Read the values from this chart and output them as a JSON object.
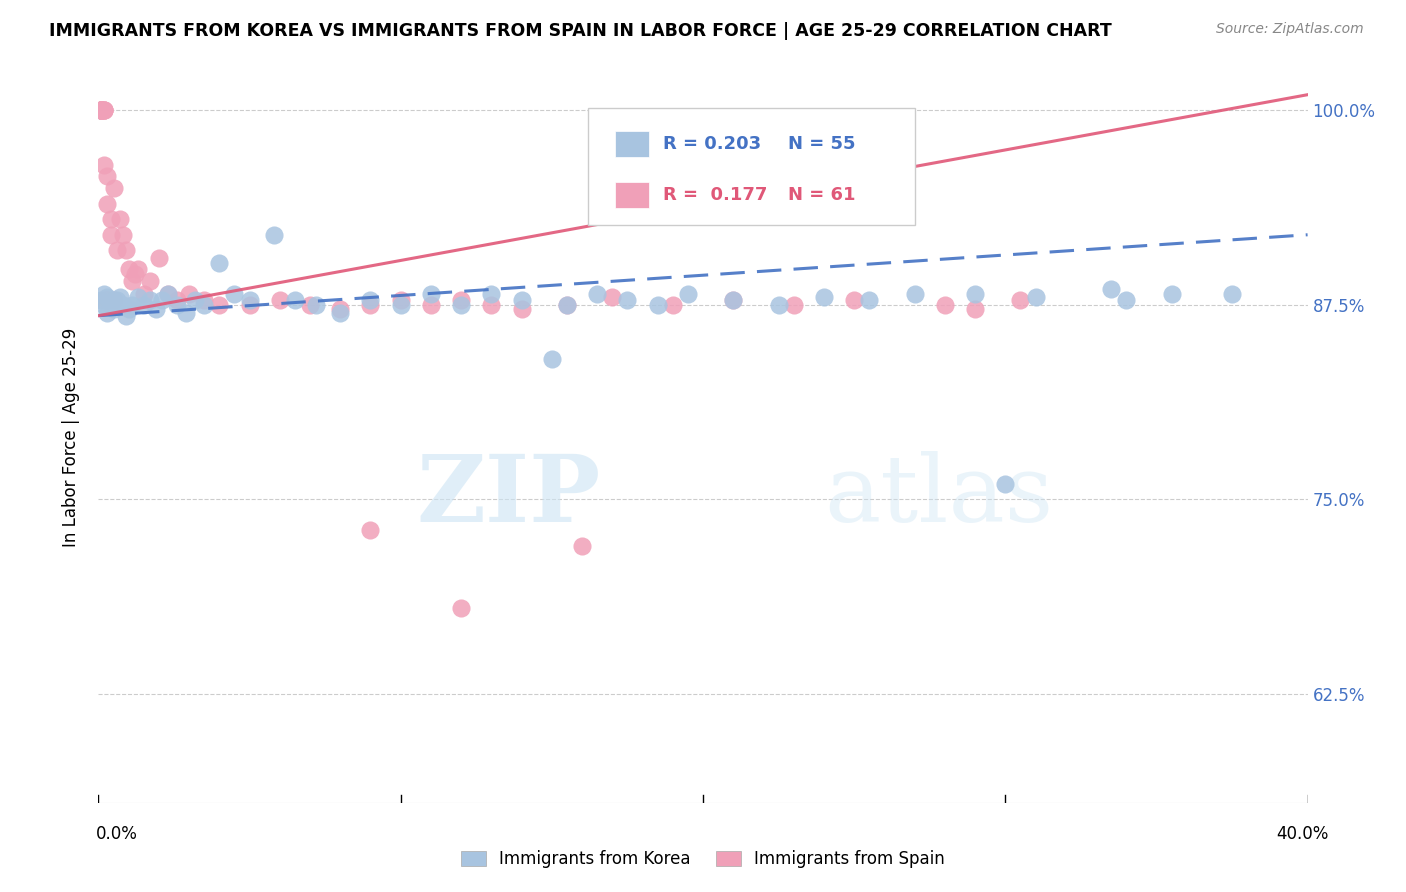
{
  "title": "IMMIGRANTS FROM KOREA VS IMMIGRANTS FROM SPAIN IN LABOR FORCE | AGE 25-29 CORRELATION CHART",
  "source": "Source: ZipAtlas.com",
  "ylabel": "In Labor Force | Age 25-29",
  "xmin": 0.0,
  "xmax": 0.4,
  "ymin": 0.555,
  "ymax": 1.025,
  "yticks": [
    0.625,
    0.75,
    0.875,
    1.0
  ],
  "ytick_labels": [
    "62.5%",
    "75.0%",
    "87.5%",
    "100.0%"
  ],
  "xticks": [
    0.0,
    0.1,
    0.2,
    0.3,
    0.4
  ],
  "korea_R": 0.203,
  "korea_N": 55,
  "spain_R": 0.177,
  "spain_N": 61,
  "korea_color": "#a8c4e0",
  "spain_color": "#f0a0b8",
  "korea_line_color": "#4472c4",
  "spain_line_color": "#e05878",
  "legend_korea_label": "Immigrants from Korea",
  "legend_spain_label": "Immigrants from Spain",
  "watermark_zip": "ZIP",
  "watermark_atlas": "atlas",
  "korea_x": [
    0.001,
    0.002,
    0.002,
    0.003,
    0.003,
    0.004,
    0.005,
    0.005,
    0.006,
    0.007,
    0.008,
    0.009,
    0.01,
    0.011,
    0.013,
    0.015,
    0.017,
    0.019,
    0.021,
    0.023,
    0.026,
    0.029,
    0.032,
    0.035,
    0.04,
    0.045,
    0.05,
    0.058,
    0.065,
    0.072,
    0.08,
    0.09,
    0.1,
    0.11,
    0.12,
    0.13,
    0.14,
    0.155,
    0.165,
    0.175,
    0.185,
    0.195,
    0.21,
    0.225,
    0.24,
    0.255,
    0.27,
    0.29,
    0.31,
    0.335,
    0.355,
    0.375,
    0.15,
    0.3,
    0.34
  ],
  "korea_y": [
    0.878,
    0.882,
    0.875,
    0.88,
    0.87,
    0.875,
    0.878,
    0.872,
    0.878,
    0.88,
    0.875,
    0.868,
    0.872,
    0.875,
    0.88,
    0.875,
    0.878,
    0.872,
    0.878,
    0.882,
    0.875,
    0.87,
    0.878,
    0.875,
    0.902,
    0.882,
    0.878,
    0.92,
    0.878,
    0.875,
    0.87,
    0.878,
    0.875,
    0.882,
    0.875,
    0.882,
    0.878,
    0.875,
    0.882,
    0.878,
    0.875,
    0.882,
    0.878,
    0.875,
    0.88,
    0.878,
    0.882,
    0.882,
    0.88,
    0.885,
    0.882,
    0.882,
    0.84,
    0.76,
    0.878
  ],
  "spain_x": [
    0.001,
    0.001,
    0.001,
    0.001,
    0.001,
    0.001,
    0.001,
    0.001,
    0.001,
    0.002,
    0.002,
    0.002,
    0.002,
    0.002,
    0.002,
    0.003,
    0.003,
    0.003,
    0.003,
    0.004,
    0.004,
    0.005,
    0.005,
    0.006,
    0.007,
    0.008,
    0.009,
    0.01,
    0.011,
    0.012,
    0.013,
    0.015,
    0.017,
    0.02,
    0.023,
    0.026,
    0.03,
    0.035,
    0.04,
    0.05,
    0.06,
    0.07,
    0.08,
    0.09,
    0.1,
    0.11,
    0.12,
    0.13,
    0.14,
    0.155,
    0.09,
    0.12,
    0.16,
    0.17,
    0.19,
    0.21,
    0.23,
    0.25,
    0.28,
    0.29,
    0.305
  ],
  "spain_y": [
    1.0,
    1.0,
    1.0,
    1.0,
    1.0,
    1.0,
    1.0,
    1.0,
    1.0,
    1.0,
    1.0,
    1.0,
    1.0,
    0.965,
    0.878,
    0.94,
    0.958,
    0.878,
    0.878,
    0.93,
    0.92,
    0.95,
    0.878,
    0.91,
    0.93,
    0.92,
    0.91,
    0.898,
    0.89,
    0.895,
    0.898,
    0.882,
    0.89,
    0.905,
    0.882,
    0.878,
    0.882,
    0.878,
    0.875,
    0.875,
    0.878,
    0.875,
    0.872,
    0.875,
    0.878,
    0.875,
    0.878,
    0.875,
    0.872,
    0.875,
    0.73,
    0.68,
    0.72,
    0.88,
    0.875,
    0.878,
    0.875,
    0.878,
    0.875,
    0.872,
    0.878
  ],
  "korea_trend_x0": 0.0,
  "korea_trend_y0": 0.868,
  "korea_trend_x1": 0.4,
  "korea_trend_y1": 0.92,
  "spain_trend_x0": 0.0,
  "spain_trend_y0": 0.868,
  "spain_trend_x1": 0.4,
  "spain_trend_y1": 1.01
}
